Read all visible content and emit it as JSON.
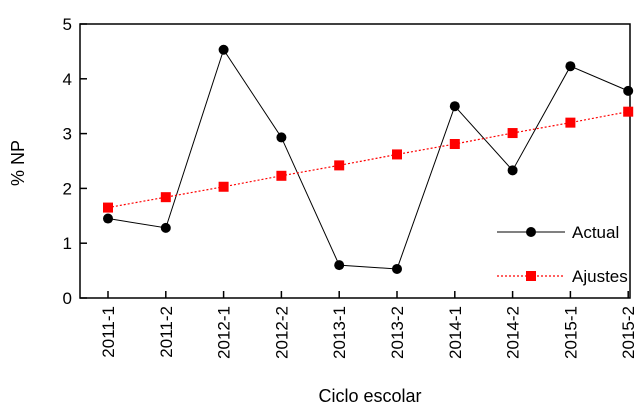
{
  "chart_data": {
    "type": "line",
    "xlabel": "Ciclo escolar",
    "ylabel": "% NP",
    "categories": [
      "2011-1",
      "2011-2",
      "2012-1",
      "2012-2",
      "2013-1",
      "2013-2",
      "2014-1",
      "2014-2",
      "2015-1",
      "2015-2"
    ],
    "ylim": [
      0,
      5
    ],
    "yticks": [
      0,
      1,
      2,
      3,
      4,
      5
    ],
    "grid": false,
    "legend_position": "bottom-right",
    "series": [
      {
        "name": "Actual",
        "color": "#000000",
        "marker": "circle",
        "line_style": "solid",
        "values": [
          1.45,
          1.28,
          4.53,
          2.93,
          0.6,
          0.53,
          3.5,
          2.33,
          4.23,
          3.78
        ]
      },
      {
        "name": "Ajustes",
        "color": "#ff0000",
        "marker": "square",
        "line_style": "dotted",
        "values": [
          1.65,
          1.84,
          2.03,
          2.23,
          2.42,
          2.62,
          2.81,
          3.01,
          3.2,
          3.4
        ]
      }
    ]
  }
}
